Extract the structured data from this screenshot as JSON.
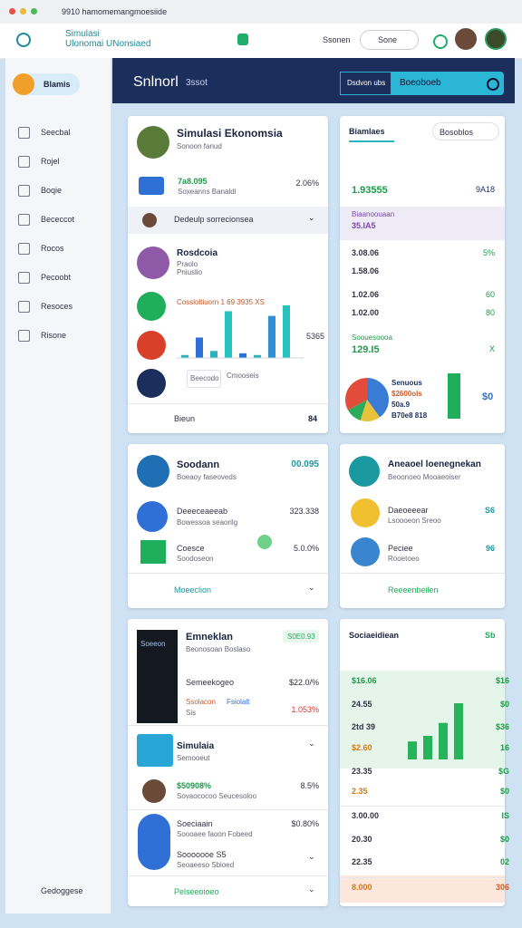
{
  "browser": {
    "url": "9910 hamomemangmoesiide"
  },
  "header": {
    "logo_line1": "Simulasi",
    "logo_line2": "Ulonomai UNonsiaed",
    "search": "Ssonen",
    "select": "Sone"
  },
  "sidebar": {
    "active": "Blamis",
    "items": [
      "Seecbal",
      "Rojel",
      "Boqie",
      "Bececcot",
      "Rocos",
      "Pecoobt",
      "Resoces",
      "Risone"
    ],
    "footer": "Gedoggese"
  },
  "banner": {
    "title": "Snlnorl",
    "subtitle": "3ssot",
    "tab": "Dsdvon ubs",
    "search": "Boeoboeb"
  },
  "profile_card": {
    "title": "Simulasi Ekonomsia",
    "subtitle": "Sonoon fanud",
    "summary": {
      "value": "7a8.095",
      "label": "Soxeanns Banaldi",
      "change": "2.06%"
    },
    "dropdown": "Dedeulp sorrecionsea",
    "section": {
      "title": "Rosdcoia",
      "line1": "Praolo",
      "line2": "Pniuslio"
    },
    "chart": {
      "title": "Cossloltiuorn 1 69 3935 XS",
      "side_value": "5365",
      "tag": "Beecodo",
      "tag_note": "Cmooseis",
      "values": [
        5,
        35,
        12,
        80,
        8,
        5,
        72,
        90
      ],
      "colors": [
        "#2bb3c0",
        "#2f6fd6",
        "#2bb3c0",
        "#26c2c0",
        "#2f6fd6",
        "#2bb3c0",
        "#2f8fd6",
        "#26c2c0"
      ]
    },
    "footer": {
      "label": "Bieun",
      "value": "84"
    }
  },
  "stats_card": {
    "title": "Biamlaes",
    "select": "Bosoblos",
    "rows": [
      {
        "value": "1.93555",
        "right": "9A18"
      },
      {
        "note": "Biaanoouaan",
        "value": "35.IA5"
      },
      {
        "value": "3.08.06",
        "right": "5%"
      },
      {
        "value": "1.58.06"
      },
      {
        "value": "1.02.06",
        "right": "60"
      },
      {
        "value": "1.02.00",
        "right": "80"
      },
      {
        "note": "Soouesoooa",
        "value": "129.I5",
        "right": "X"
      }
    ],
    "pie": {
      "labels": [
        "Senuous",
        "$2600ols",
        "50a.9",
        "B70e8 818"
      ],
      "values": [
        40,
        15,
        12,
        33
      ],
      "colors": [
        "#3a7bd5",
        "#e8c33a",
        "#2eaa5c",
        "#e34b3a"
      ],
      "right": "$0"
    }
  },
  "savings_card": {
    "title": "Soodann",
    "value": "00.095",
    "subtitle": "Boeaoy faseoveds",
    "item1": {
      "label": "Deeeceaeeab",
      "value": "323.338",
      "note": "Bowessoa seaorilg"
    },
    "item2": {
      "label": "Coesce",
      "value": "5.0.0%",
      "note": "Soodoseon"
    },
    "footer": "Moeeclion"
  },
  "analysis_card": {
    "title": "Aneaoel loenegnekan",
    "subtitle": "Beoonoeo Mooaeoiser",
    "item1": {
      "label": "Daeoeeear",
      "note": "Lsoooeon Sreoo",
      "value": "S6"
    },
    "item2": {
      "label": "Peciee",
      "note": "Rooetoeo",
      "value": "96"
    },
    "footer": "Reeeenbeilen"
  },
  "media_card": {
    "image_label": "Soeeon",
    "title": "Emneklan",
    "badge": "S0E0.93",
    "subtitle": "Beonosoan Boslaso",
    "row1": {
      "label": "Semeekogeo",
      "value": "$22.0/%"
    },
    "row2": {
      "label": "Ssolacon",
      "label2": "Fsiolalt",
      "note": "Sis",
      "value": "1.053%"
    },
    "section": {
      "title": "Simulaia",
      "subtitle": "Semooeut"
    },
    "row3": {
      "value": "$50908%",
      "note": "Sovaococoo Seucesoloo",
      "right": "8.5%"
    },
    "row4": {
      "label": "Soeciaain",
      "value": "$0.80%",
      "note": "Soooaee faoon Fobeed",
      "line2": "Sooooooe S5",
      "line3": "Seoaeeso Sbioed"
    },
    "footer": "Pelseeoioeo"
  },
  "table_card": {
    "title": "Sociaeidiean",
    "badge": "Sb",
    "rows": [
      {
        "value": "$16.06",
        "right": "$16"
      },
      {
        "value": "24.55",
        "right": "$0"
      },
      {
        "value": "2td 39",
        "right": "$36"
      },
      {
        "value": "$2.60",
        "right": "16"
      },
      {
        "value": "23.35",
        "right": "$G"
      },
      {
        "value": "2.35",
        "right": "$0"
      },
      {
        "value": "3.00.00",
        "right": "IS"
      },
      {
        "value": "20.30",
        "right": "$0"
      },
      {
        "value": "22.35",
        "right": "02"
      },
      {
        "value": "8.000",
        "right": "306"
      }
    ],
    "chart": {
      "values": [
        32,
        42,
        65,
        100
      ],
      "color": "#27b35a"
    }
  }
}
